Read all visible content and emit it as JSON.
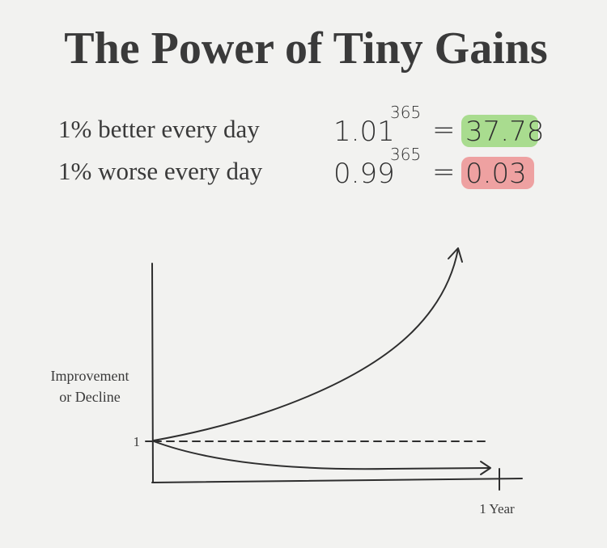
{
  "title": "The Power of Tiny Gains",
  "equations": [
    {
      "label": "1% better every day",
      "base": "1.01",
      "exponent": "365",
      "equals": "=",
      "result": "37.78"
    },
    {
      "label": "1% worse every day",
      "base": "0.99",
      "exponent": "365",
      "equals": "=",
      "result": "0.03"
    }
  ],
  "graph": {
    "y_axis_label": [
      "Improvement",
      "or Decline"
    ],
    "y_tick": "1",
    "x_tick": "1 Year"
  }
}
